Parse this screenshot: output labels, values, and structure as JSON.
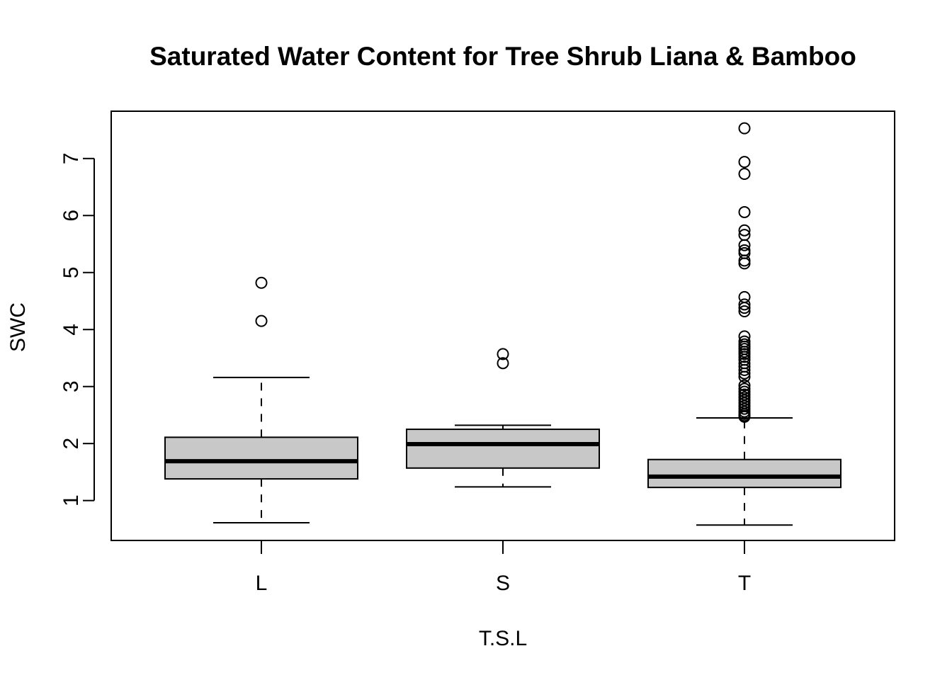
{
  "chart_data": {
    "type": "boxplot",
    "title": "Saturated Water Content for Tree Shrub Liana & Bamboo",
    "xlabel": "T.S.L",
    "ylabel": "SWC",
    "ylim": [
      0.3,
      7.83
    ],
    "yticks": [
      "1",
      "2",
      "3",
      "4",
      "5",
      "6",
      "7"
    ],
    "box_fill": "#c8c8c8",
    "grid": false,
    "groups": [
      {
        "category": "L",
        "min": 0.61,
        "q1": 1.38,
        "median": 1.69,
        "q3": 2.11,
        "max": 3.16,
        "outliers": [
          4.82,
          4.15
        ]
      },
      {
        "category": "S",
        "min": 1.24,
        "q1": 1.57,
        "median": 1.99,
        "q3": 2.25,
        "max": 2.32,
        "outliers": [
          3.57,
          3.41
        ]
      },
      {
        "category": "T",
        "min": 0.57,
        "q1": 1.23,
        "median": 1.42,
        "q3": 1.72,
        "max": 2.45,
        "outliers": [
          7.53,
          6.94,
          6.73,
          6.06,
          5.74,
          5.66,
          5.48,
          5.39,
          5.34,
          5.21,
          5.16,
          4.57,
          4.44,
          4.38,
          4.32,
          3.88,
          3.79,
          3.74,
          3.7,
          3.66,
          3.61,
          3.57,
          3.52,
          3.47,
          3.41,
          3.35,
          3.29,
          3.23,
          3.17,
          3.02,
          2.96,
          2.91,
          2.86,
          2.81,
          2.76,
          2.71,
          2.66,
          2.61,
          2.56,
          2.52,
          2.49,
          2.47
        ]
      }
    ]
  }
}
